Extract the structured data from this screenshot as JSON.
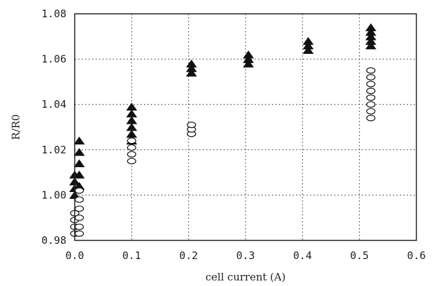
{
  "chart_data": {
    "type": "scatter",
    "title": "",
    "xlabel": "cell current (A)",
    "ylabel": "R/R0",
    "xlim": [
      0.0,
      0.6
    ],
    "ylim": [
      0.98,
      1.08
    ],
    "grid": true,
    "x_ticks": [
      "0.0",
      "0.1",
      "0.2",
      "0.3",
      "0.4",
      "0.5",
      "0.6"
    ],
    "y_ticks": [
      "0.98",
      "1.00",
      "1.02",
      "1.04",
      "1.06",
      "1.08"
    ],
    "series": [
      {
        "marker": "filled-triangle",
        "color": "#111111",
        "points": [
          {
            "x": 0.0,
            "y": 1.0
          },
          {
            "x": 0.0,
            "y": 1.003
          },
          {
            "x": 0.0,
            "y": 1.006
          },
          {
            "x": 0.0,
            "y": 1.009
          },
          {
            "x": 0.008,
            "y": 1.004
          },
          {
            "x": 0.008,
            "y": 1.009
          },
          {
            "x": 0.008,
            "y": 1.014
          },
          {
            "x": 0.008,
            "y": 1.019
          },
          {
            "x": 0.008,
            "y": 1.024
          },
          {
            "x": 0.1,
            "y": 1.024
          },
          {
            "x": 0.1,
            "y": 1.027
          },
          {
            "x": 0.1,
            "y": 1.03
          },
          {
            "x": 0.1,
            "y": 1.033
          },
          {
            "x": 0.1,
            "y": 1.036
          },
          {
            "x": 0.1,
            "y": 1.039
          },
          {
            "x": 0.205,
            "y": 1.054
          },
          {
            "x": 0.205,
            "y": 1.056
          },
          {
            "x": 0.205,
            "y": 1.058
          },
          {
            "x": 0.305,
            "y": 1.058
          },
          {
            "x": 0.305,
            "y": 1.06
          },
          {
            "x": 0.305,
            "y": 1.062
          },
          {
            "x": 0.41,
            "y": 1.064
          },
          {
            "x": 0.41,
            "y": 1.066
          },
          {
            "x": 0.41,
            "y": 1.068
          },
          {
            "x": 0.52,
            "y": 1.066
          },
          {
            "x": 0.52,
            "y": 1.068
          },
          {
            "x": 0.52,
            "y": 1.07
          },
          {
            "x": 0.52,
            "y": 1.072
          },
          {
            "x": 0.52,
            "y": 1.074
          }
        ]
      },
      {
        "marker": "open-circle",
        "color": "#111111",
        "points": [
          {
            "x": 0.0,
            "y": 0.983
          },
          {
            "x": 0.0,
            "y": 0.986
          },
          {
            "x": 0.0,
            "y": 0.989
          },
          {
            "x": 0.0,
            "y": 0.992
          },
          {
            "x": 0.008,
            "y": 0.983
          },
          {
            "x": 0.008,
            "y": 0.986
          },
          {
            "x": 0.008,
            "y": 0.99
          },
          {
            "x": 0.008,
            "y": 0.994
          },
          {
            "x": 0.008,
            "y": 0.998
          },
          {
            "x": 0.008,
            "y": 1.002
          },
          {
            "x": 0.1,
            "y": 1.015
          },
          {
            "x": 0.1,
            "y": 1.018
          },
          {
            "x": 0.1,
            "y": 1.021
          },
          {
            "x": 0.1,
            "y": 1.024
          },
          {
            "x": 0.205,
            "y": 1.027
          },
          {
            "x": 0.205,
            "y": 1.029
          },
          {
            "x": 0.205,
            "y": 1.031
          },
          {
            "x": 0.52,
            "y": 1.034
          },
          {
            "x": 0.52,
            "y": 1.037
          },
          {
            "x": 0.52,
            "y": 1.04
          },
          {
            "x": 0.52,
            "y": 1.043
          },
          {
            "x": 0.52,
            "y": 1.046
          },
          {
            "x": 0.52,
            "y": 1.049
          },
          {
            "x": 0.52,
            "y": 1.052
          },
          {
            "x": 0.52,
            "y": 1.055
          }
        ]
      }
    ]
  }
}
